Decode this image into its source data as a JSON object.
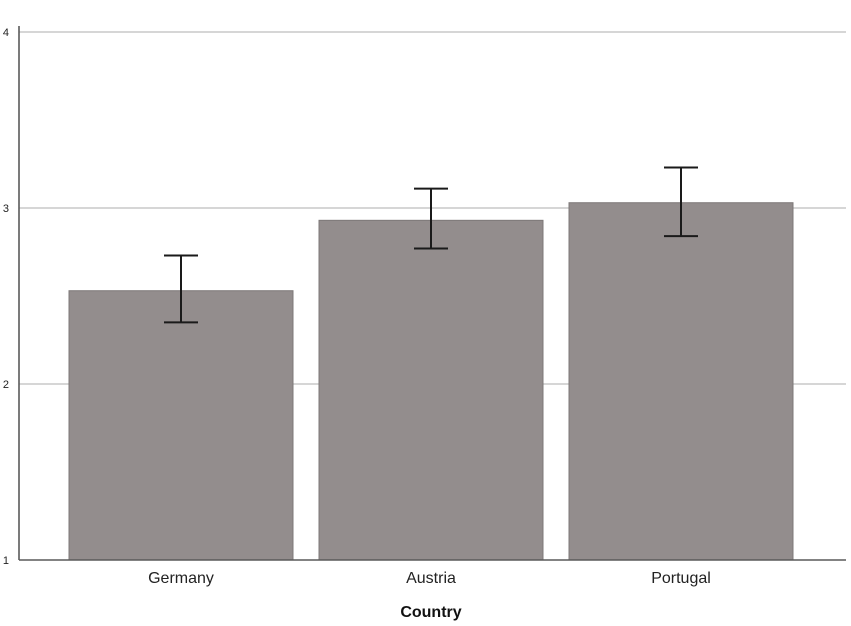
{
  "chart_data": {
    "type": "bar",
    "title": "",
    "xlabel": "Country",
    "ylabel": "",
    "categories": [
      "Germany",
      "Austria",
      "Portugal"
    ],
    "values": [
      2.53,
      2.93,
      3.03
    ],
    "error_low": [
      2.35,
      2.77,
      2.84
    ],
    "error_high": [
      2.73,
      3.11,
      3.23
    ],
    "ylim": [
      1,
      4
    ],
    "yticks": [
      "1",
      "2",
      "3",
      "4"
    ],
    "grid": true,
    "legend": "none",
    "colors": {
      "bar": "#938d8d",
      "error_bar": "#1a1a1a",
      "grid": "#c8c8c8",
      "axis": "#5a5a5a"
    }
  }
}
